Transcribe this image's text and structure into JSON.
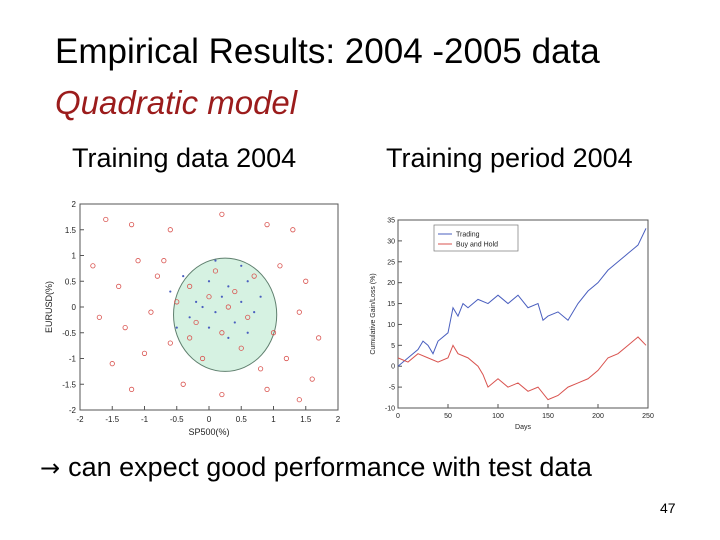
{
  "slide": {
    "title": "Empirical Results: 2004 -2005 data",
    "subtitle": "Quadratic model",
    "subtitle_color": "#9b1c1c",
    "left_label": "Training data 2004",
    "right_label": "Training period 2004",
    "conclusion": "can expect good performance with test data",
    "conclusion_icon": "right-arrow-icon",
    "page_number": "47"
  },
  "chart_data": [
    {
      "type": "scatter",
      "xlabel": "SP500(%)",
      "ylabel": "EURUSD(%)",
      "xlim": [
        -2,
        2
      ],
      "ylim": [
        -2,
        2
      ],
      "xticks": [
        "-2",
        "-1.5",
        "-1",
        "-0.5",
        "0",
        "0.5",
        "1",
        "1.5",
        "2"
      ],
      "yticks": [
        "-2",
        "-1.5",
        "-1",
        "-0.5",
        "0",
        "0.5",
        "1",
        "1.5",
        "2"
      ],
      "region": {
        "shape": "ellipse",
        "center": [
          0.25,
          -0.15
        ],
        "radii": [
          0.8,
          1.1
        ],
        "fill": "#d6f2e2",
        "stroke": "#5f7f6e"
      },
      "series": [
        {
          "marker": "circle",
          "color": "#d9534f",
          "points": [
            [
              -1.6,
              1.7
            ],
            [
              -1.2,
              1.6
            ],
            [
              -0.6,
              1.5
            ],
            [
              0.2,
              1.8
            ],
            [
              0.9,
              1.6
            ],
            [
              1.3,
              1.5
            ],
            [
              -1.8,
              0.8
            ],
            [
              -1.4,
              0.4
            ],
            [
              -1.1,
              0.9
            ],
            [
              -0.8,
              0.6
            ],
            [
              -0.3,
              0.4
            ],
            [
              0.1,
              0.7
            ],
            [
              0.4,
              0.3
            ],
            [
              0.7,
              0.6
            ],
            [
              1.1,
              0.8
            ],
            [
              1.5,
              0.5
            ],
            [
              -1.7,
              -0.2
            ],
            [
              -1.3,
              -0.4
            ],
            [
              -0.9,
              -0.1
            ],
            [
              -0.5,
              0.1
            ],
            [
              -0.2,
              -0.3
            ],
            [
              0.3,
              0.0
            ],
            [
              0.6,
              -0.2
            ],
            [
              1.0,
              -0.5
            ],
            [
              1.4,
              -0.1
            ],
            [
              1.7,
              -0.6
            ],
            [
              -1.5,
              -1.1
            ],
            [
              -1.0,
              -0.9
            ],
            [
              -0.6,
              -0.7
            ],
            [
              -0.1,
              -1.0
            ],
            [
              0.5,
              -0.8
            ],
            [
              0.8,
              -1.2
            ],
            [
              1.2,
              -1.0
            ],
            [
              1.6,
              -1.4
            ],
            [
              -1.2,
              -1.6
            ],
            [
              -0.4,
              -1.5
            ],
            [
              0.2,
              -1.7
            ],
            [
              0.9,
              -1.6
            ],
            [
              1.4,
              -1.8
            ],
            [
              -0.7,
              0.9
            ],
            [
              0.0,
              0.2
            ],
            [
              0.2,
              -0.5
            ],
            [
              -0.3,
              -0.6
            ]
          ]
        },
        {
          "marker": "dot",
          "color": "#4a5fbf",
          "points": [
            [
              -0.6,
              0.3
            ],
            [
              -0.4,
              0.6
            ],
            [
              -0.2,
              0.1
            ],
            [
              0.0,
              0.5
            ],
            [
              0.1,
              -0.1
            ],
            [
              0.3,
              0.4
            ],
            [
              0.5,
              0.1
            ],
            [
              0.6,
              0.5
            ],
            [
              0.8,
              0.2
            ],
            [
              -0.3,
              -0.2
            ],
            [
              0.0,
              -0.4
            ],
            [
              0.2,
              0.2
            ],
            [
              0.4,
              -0.3
            ],
            [
              0.7,
              -0.1
            ],
            [
              -0.5,
              -0.4
            ],
            [
              0.1,
              0.9
            ],
            [
              0.5,
              0.8
            ],
            [
              -0.1,
              0.0
            ],
            [
              0.3,
              -0.6
            ],
            [
              0.6,
              -0.5
            ]
          ]
        }
      ]
    },
    {
      "type": "line",
      "xlabel": "Days",
      "ylabel": "Cumulative Gain/Loss (%)",
      "xlim": [
        0,
        250
      ],
      "ylim": [
        -10,
        35
      ],
      "xticks": [
        "0",
        "50",
        "100",
        "150",
        "200",
        "250"
      ],
      "yticks": [
        "35",
        "30",
        "25",
        "20",
        "15",
        "10",
        "5",
        "0",
        "-5",
        "-10"
      ],
      "legend_position": "top-left",
      "series": [
        {
          "name": "Trading",
          "color": "#4a5fbf",
          "x": [
            0,
            10,
            20,
            25,
            30,
            35,
            40,
            50,
            55,
            60,
            65,
            70,
            80,
            90,
            100,
            110,
            120,
            130,
            140,
            145,
            150,
            160,
            170,
            180,
            190,
            200,
            210,
            220,
            230,
            240,
            248
          ],
          "y": [
            0,
            2,
            4,
            6,
            5,
            3,
            6,
            8,
            14,
            12,
            15,
            14,
            16,
            15,
            17,
            15,
            17,
            14,
            15,
            11,
            12,
            13,
            11,
            15,
            18,
            20,
            23,
            25,
            27,
            29,
            33
          ]
        },
        {
          "name": "Buy and Hold",
          "color": "#d9534f",
          "x": [
            0,
            10,
            20,
            30,
            40,
            50,
            55,
            60,
            70,
            80,
            85,
            90,
            100,
            110,
            120,
            130,
            140,
            150,
            160,
            170,
            180,
            190,
            200,
            210,
            220,
            230,
            240,
            248
          ],
          "y": [
            2,
            1,
            3,
            2,
            1,
            2,
            5,
            3,
            2,
            0,
            -2,
            -5,
            -3,
            -5,
            -4,
            -6,
            -5,
            -8,
            -7,
            -5,
            -4,
            -3,
            -1,
            2,
            3,
            5,
            7,
            5
          ]
        }
      ]
    }
  ]
}
